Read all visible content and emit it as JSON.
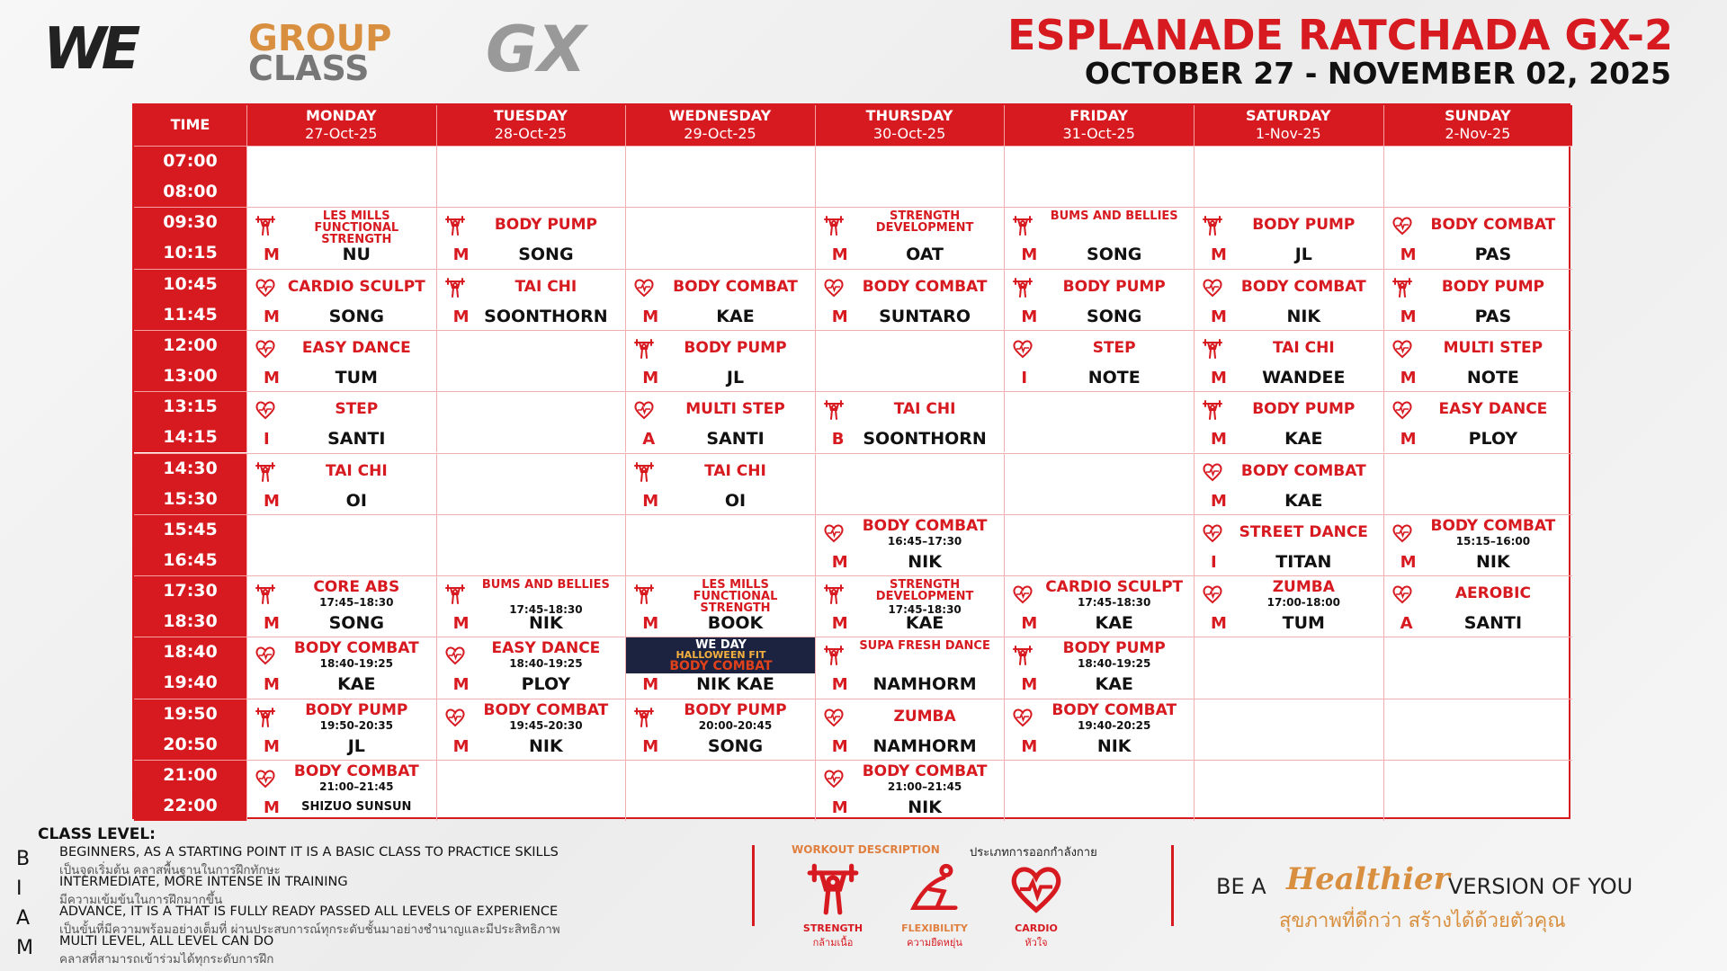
{
  "header": {
    "logo_we": "WE",
    "logo_group": "GROUP",
    "logo_class": "CLASS",
    "logo_gx": "GX",
    "title": "ESPLANADE RATCHADA GX-2",
    "dates": "OCTOBER 27 - NOVEMBER 02, 2025"
  },
  "table": {
    "time_header": "TIME",
    "days": [
      {
        "name": "MONDAY",
        "date": "27-Oct-25"
      },
      {
        "name": "TUESDAY",
        "date": "28-Oct-25"
      },
      {
        "name": "WEDNESDAY",
        "date": "29-Oct-25"
      },
      {
        "name": "THURSDAY",
        "date": "30-Oct-25"
      },
      {
        "name": "FRIDAY",
        "date": "31-Oct-25"
      },
      {
        "name": "SATURDAY",
        "date": "1-Nov-25"
      },
      {
        "name": "SUNDAY",
        "date": "2-Nov-25"
      }
    ],
    "times": [
      [
        "07:00",
        "08:00"
      ],
      [
        "09:30",
        "10:15"
      ],
      [
        "10:45",
        "11:45"
      ],
      [
        "12:00",
        "13:00"
      ],
      [
        "13:15",
        "14:15"
      ],
      [
        "14:30",
        "15:30"
      ],
      [
        "15:45",
        "16:45"
      ],
      [
        "17:30",
        "18:30"
      ],
      [
        "18:40",
        "19:40"
      ],
      [
        "19:50",
        "20:50"
      ],
      [
        "21:00",
        "22:00"
      ]
    ],
    "cells": [
      [
        null,
        null,
        null,
        null,
        null,
        null,
        null
      ],
      [
        {
          "icon": "strength",
          "name": "LES MILLS FUNCTIONAL STRENGTH",
          "level": "M",
          "coach": "NU"
        },
        {
          "icon": "strength",
          "name": "BODY PUMP",
          "level": "M",
          "coach": "SONG"
        },
        null,
        {
          "icon": "strength",
          "name": "STRENGTH DEVELOPMENT",
          "level": "M",
          "coach": "OAT"
        },
        {
          "icon": "strength",
          "name": "BUMS AND BELLIES",
          "level": "M",
          "coach": "SONG"
        },
        {
          "icon": "strength",
          "name": "BODY PUMP",
          "level": "M",
          "coach": "JL"
        },
        {
          "icon": "cardio",
          "name": "BODY COMBAT",
          "level": "M",
          "coach": "PAS"
        }
      ],
      [
        {
          "icon": "cardio",
          "name": "CARDIO SCULPT",
          "level": "M",
          "coach": "SONG"
        },
        {
          "icon": "strength",
          "name": "TAI CHI",
          "level": "M",
          "coach": "SOONTHORN"
        },
        {
          "icon": "cardio",
          "name": "BODY COMBAT",
          "level": "M",
          "coach": "KAE"
        },
        {
          "icon": "cardio",
          "name": "BODY COMBAT",
          "level": "M",
          "coach": "SUNTARO"
        },
        {
          "icon": "strength",
          "name": "BODY PUMP",
          "level": "M",
          "coach": "SONG"
        },
        {
          "icon": "cardio",
          "name": "BODY COMBAT",
          "level": "M",
          "coach": "NIK"
        },
        {
          "icon": "strength",
          "name": "BODY PUMP",
          "level": "M",
          "coach": "PAS"
        }
      ],
      [
        {
          "icon": "cardio",
          "name": "EASY DANCE",
          "level": "M",
          "coach": "TUM"
        },
        null,
        {
          "icon": "strength",
          "name": "BODY PUMP",
          "level": "M",
          "coach": "JL"
        },
        null,
        {
          "icon": "cardio",
          "name": "STEP",
          "level": "I",
          "coach": "NOTE"
        },
        {
          "icon": "strength",
          "name": "TAI CHI",
          "level": "M",
          "coach": "WANDEE"
        },
        {
          "icon": "cardio",
          "name": "MULTI STEP",
          "level": "M",
          "coach": "NOTE"
        }
      ],
      [
        {
          "icon": "cardio",
          "name": "STEP",
          "level": "I",
          "coach": "SANTI"
        },
        null,
        {
          "icon": "cardio",
          "name": "MULTI STEP",
          "level": "A",
          "coach": "SANTI"
        },
        {
          "icon": "strength",
          "name": "TAI CHI",
          "level": "B",
          "coach": "SOONTHORN"
        },
        null,
        {
          "icon": "strength",
          "name": "BODY PUMP",
          "level": "M",
          "coach": "KAE"
        },
        {
          "icon": "cardio",
          "name": "EASY DANCE",
          "level": "M",
          "coach": "PLOY"
        }
      ],
      [
        {
          "icon": "strength",
          "name": "TAI CHI",
          "level": "M",
          "coach": "OI"
        },
        null,
        {
          "icon": "strength",
          "name": "TAI CHI",
          "level": "M",
          "coach": "OI"
        },
        null,
        null,
        {
          "icon": "cardio",
          "name": "BODY COMBAT",
          "level": "M",
          "coach": "KAE"
        },
        null
      ],
      [
        null,
        null,
        null,
        {
          "icon": "cardio",
          "name": "BODY COMBAT",
          "time": "16:45–17:30",
          "level": "M",
          "coach": "NIK"
        },
        null,
        {
          "icon": "cardio",
          "name": "STREET DANCE",
          "level": "I",
          "coach": "TITAN"
        },
        {
          "icon": "cardio",
          "name": "BODY COMBAT",
          "time": "15:15–16:00",
          "level": "M",
          "coach": "NIK"
        }
      ],
      [
        {
          "icon": "strength",
          "name": "CORE ABS",
          "time": "17:45–18:30",
          "level": "M",
          "coach": "SONG"
        },
        {
          "icon": "strength",
          "name": "BUMS AND BELLIES",
          "time": "17:45-18:30",
          "level": "M",
          "coach": "NIK"
        },
        {
          "icon": "strength",
          "name": "LES MILLS FUNCTIONAL STRENGTH",
          "level": "M",
          "coach": "BOOK"
        },
        {
          "icon": "strength",
          "name": "STRENGTH DEVELOPMENT",
          "time": "17:45-18:30",
          "level": "M",
          "coach": "KAE"
        },
        {
          "icon": "cardio",
          "name": "CARDIO SCULPT",
          "time": "17:45-18:30",
          "level": "M",
          "coach": "KAE"
        },
        {
          "icon": "cardio",
          "name": "ZUMBA",
          "time": "17:00-18:00",
          "level": "M",
          "coach": "TUM"
        },
        {
          "icon": "cardio",
          "name": "AEROBIC",
          "level": "A",
          "coach": "SANTI"
        }
      ],
      [
        {
          "icon": "cardio",
          "name": "BODY COMBAT",
          "time": "18:40-19:25",
          "level": "M",
          "coach": "KAE"
        },
        {
          "icon": "cardio",
          "name": "EASY DANCE",
          "time": "18:40-19:25",
          "level": "M",
          "coach": "PLOY"
        },
        {
          "banner": [
            "WE DAY",
            "HALLOWEEN FIT",
            "BODY COMBAT"
          ],
          "level": "M",
          "coach": "NIK KAE"
        },
        {
          "icon": "strength",
          "name": "SUPA FRESH DANCE",
          "level": "M",
          "coach": "NAMHORM"
        },
        {
          "icon": "strength",
          "name": "BODY PUMP",
          "time": "18:40-19:25",
          "level": "M",
          "coach": "KAE"
        },
        null,
        null
      ],
      [
        {
          "icon": "strength",
          "name": "BODY PUMP",
          "time": "19:50-20:35",
          "level": "M",
          "coach": "JL"
        },
        {
          "icon": "cardio",
          "name": "BODY COMBAT",
          "time": "19:45-20:30",
          "level": "M",
          "coach": "NIK"
        },
        {
          "icon": "strength",
          "name": "BODY PUMP",
          "time": "20:00-20:45",
          "level": "M",
          "coach": "SONG"
        },
        {
          "icon": "cardio",
          "name": "ZUMBA",
          "level": "M",
          "coach": "NAMHORM"
        },
        {
          "icon": "cardio",
          "name": "BODY COMBAT",
          "time": "19:40-20:25",
          "level": "M",
          "coach": "NIK"
        },
        null,
        null
      ],
      [
        {
          "icon": "cardio",
          "name": "BODY COMBAT",
          "time": "21:00–21:45",
          "level": "M",
          "coach": "SHIZUO SUNSUN"
        },
        null,
        null,
        {
          "icon": "cardio",
          "name": "BODY COMBAT",
          "time": "21:00–21:45",
          "level": "M",
          "coach": "NIK"
        },
        null,
        null,
        null
      ]
    ]
  },
  "legend": {
    "title": "CLASS LEVEL:",
    "items": [
      {
        "letter": "B",
        "en": "BEGINNERS, AS A STARTING POINT IT IS A BASIC CLASS TO PRACTICE SKILLS",
        "th": "เป็นจุดเริ่มต้น คลาสพื้นฐานในการฝึกทักษะ"
      },
      {
        "letter": "I",
        "en": "INTERMEDIATE, MORE INTENSE IN TRAINING",
        "th": "มีความเข้มข้นในการฝึกมากขึ้น"
      },
      {
        "letter": "A",
        "en": "ADVANCE, IT IS A THAT IS FULLY READY PASSED ALL LEVELS OF EXPERIENCE",
        "th": "เป็นขั้นที่มีความพร้อมอย่างเต็มที่ ผ่านประสบการณ์ทุกระดับชั้นมาอย่างชำนาญและมีประสิทธิภาพ"
      },
      {
        "letter": "M",
        "en": "MULTI LEVEL, ALL LEVEL CAN DO",
        "th": "คลาสที่สามารถเข้าร่วมได้ทุกระดับการฝึก"
      }
    ]
  },
  "workout": {
    "title": "WORKOUT DESCRIPTION",
    "title_th": "ประเภทการออกกำลังกาย",
    "items": [
      {
        "en": "STRENGTH",
        "th": "กล้ามเนื้อ",
        "icon": "strength"
      },
      {
        "en": "FLEXIBILITY",
        "th": "ความยืดหยุ่น",
        "icon": "flex"
      },
      {
        "en": "CARDIO",
        "th": "หัวใจ",
        "icon": "cardio"
      }
    ]
  },
  "slogan": {
    "pre": "BE A",
    "script": "Healthier",
    "post": "VERSION OF YOU",
    "th": "สุขภาพที่ดีกว่า สร้างได้ด้วยตัวคุณ"
  }
}
